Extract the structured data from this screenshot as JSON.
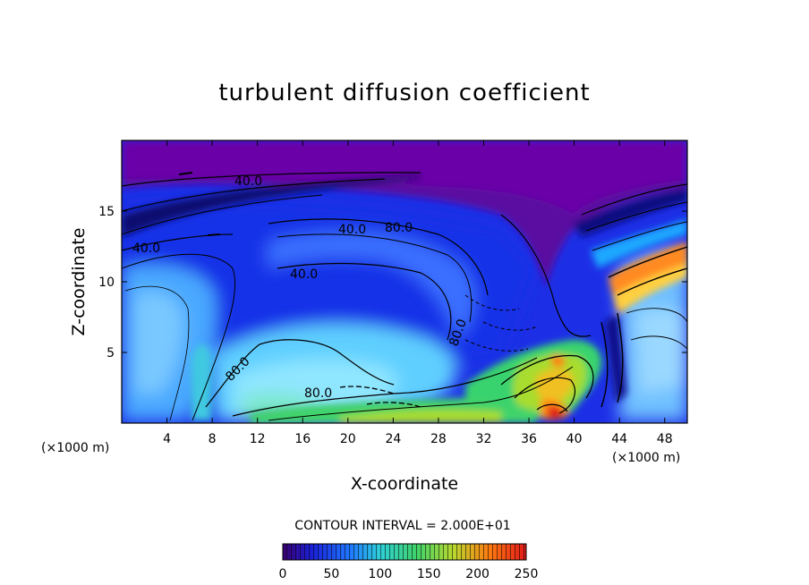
{
  "chart_data": {
    "type": "heatmap",
    "title": "turbulent diffusion coefficient",
    "xlabel": "X-coordinate",
    "ylabel": "Z-coordinate",
    "x_unit_left": "(×1000 m)",
    "x_unit_right": "(×1000 m)",
    "xlim": [
      0,
      50
    ],
    "ylim": [
      0,
      20
    ],
    "x_ticks": [
      4,
      8,
      12,
      16,
      20,
      24,
      28,
      32,
      36,
      40,
      44,
      48
    ],
    "y_ticks": [
      5,
      10,
      15
    ],
    "contour_interval_text": "CONTOUR INTERVAL = 2.000E+01",
    "contour_interval": 20,
    "contour_labels": [
      {
        "text": "40.0",
        "x": 11.3,
        "z": 17.1
      },
      {
        "text": "40.0",
        "x": 2.1,
        "z": 12.4
      },
      {
        "text": "40.0",
        "x": 20.6,
        "z": 13.8
      },
      {
        "text": "80.0",
        "x": 24.5,
        "z": 13.8
      },
      {
        "text": "40.0",
        "x": 15.9,
        "z": 10.5
      },
      {
        "text": "80.0",
        "x": 29.4,
        "z": 6.5
      },
      {
        "text": "80.0",
        "x": 10.6,
        "z": 4.0
      },
      {
        "text": "80.0",
        "x": 17.7,
        "z": 2.0
      }
    ],
    "colorbar": {
      "min": 0,
      "max": 250,
      "ticks": [
        0,
        50,
        100,
        150,
        200,
        250
      ],
      "colors": [
        "#3a0070",
        "#1a20d8",
        "#1f7aff",
        "#2ecfd8",
        "#3fd36a",
        "#b8d82e",
        "#ff7a10",
        "#e01818"
      ]
    },
    "grid": false,
    "legend": "colorbar-bottom"
  }
}
